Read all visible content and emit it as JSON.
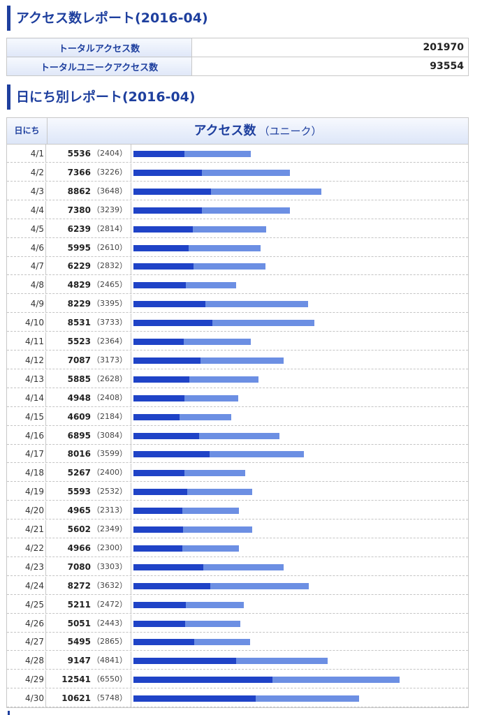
{
  "report_title": "アクセス数レポート(2016-04)",
  "summary": {
    "total_label": "トータルアクセス数",
    "total_value": "201970",
    "unique_label": "トータルユニークアクセス数",
    "unique_value": "93554"
  },
  "daily_title": "日にち別レポート(2016-04)",
  "table": {
    "day_header": "日にち",
    "access_header": "アクセス数",
    "unique_header": "（ユニーク）"
  },
  "colors": {
    "total_bar": "#6c8fe3",
    "unique_bar": "#1f43c7",
    "title": "#1e3f9e"
  },
  "chart_data": {
    "type": "bar",
    "orientation": "horizontal",
    "xmax": 12541,
    "categories": [
      "4/1",
      "4/2",
      "4/3",
      "4/4",
      "4/5",
      "4/6",
      "4/7",
      "4/8",
      "4/9",
      "4/10",
      "4/11",
      "4/12",
      "4/13",
      "4/14",
      "4/15",
      "4/16",
      "4/17",
      "4/18",
      "4/19",
      "4/20",
      "4/21",
      "4/22",
      "4/23",
      "4/24",
      "4/25",
      "4/26",
      "4/27",
      "4/28",
      "4/29",
      "4/30"
    ],
    "series": [
      {
        "name": "アクセス数",
        "values": [
          5536,
          7366,
          8862,
          7380,
          6239,
          5995,
          6229,
          4829,
          8229,
          8531,
          5523,
          7087,
          5885,
          4948,
          4609,
          6895,
          8016,
          5267,
          5593,
          4965,
          5602,
          4966,
          7080,
          8272,
          5211,
          5051,
          5495,
          9147,
          12541,
          10621
        ]
      },
      {
        "name": "ユニーク",
        "values": [
          2404,
          3226,
          3648,
          3239,
          2814,
          2610,
          2832,
          2465,
          3395,
          3733,
          2364,
          3173,
          2628,
          2408,
          2184,
          3084,
          3599,
          2400,
          2532,
          2313,
          2349,
          2300,
          3303,
          3632,
          2472,
          2443,
          2865,
          4841,
          6550,
          5748
        ]
      }
    ]
  }
}
